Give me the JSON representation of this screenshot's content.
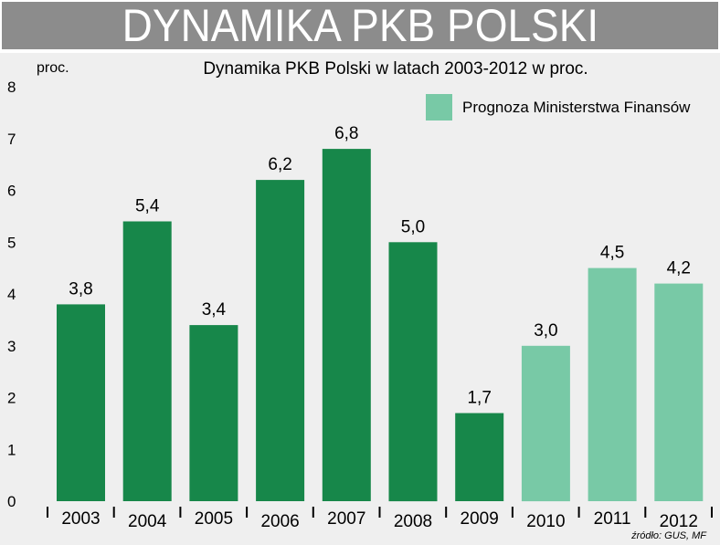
{
  "banner": {
    "title": "DYNAMIKA PKB POLSKI"
  },
  "source": "źródło: GUS, MF",
  "legend": {
    "label": "Prognoza Ministerstwa Finansów"
  },
  "colors": {
    "actual": "#17874a",
    "forecast": "#78c9a6",
    "background": "#efefef",
    "banner": "#8c8c8c"
  },
  "chart_data": {
    "type": "bar",
    "title": "Dynamika PKB Polski w latach 2003-2012 w proc.",
    "ylabel": "proc.",
    "xlabel": "",
    "ylim": [
      0,
      8
    ],
    "yticks": [
      "0",
      "1",
      "2",
      "3",
      "4",
      "5",
      "6",
      "7",
      "8"
    ],
    "grid": false,
    "legend_position": "top-right",
    "categories": [
      "2003",
      "2004",
      "2005",
      "2006",
      "2007",
      "2008",
      "2009",
      "2010",
      "2011",
      "2012"
    ],
    "values": [
      3.8,
      5.4,
      3.4,
      6.2,
      6.8,
      5.0,
      1.7,
      3.0,
      4.5,
      4.2
    ],
    "value_labels": [
      "3,8",
      "5,4",
      "3,4",
      "6,2",
      "6,8",
      "5,0",
      "1,7",
      "3,0",
      "4,5",
      "4,2"
    ],
    "forecast": [
      false,
      false,
      false,
      false,
      false,
      false,
      false,
      true,
      true,
      true
    ]
  }
}
